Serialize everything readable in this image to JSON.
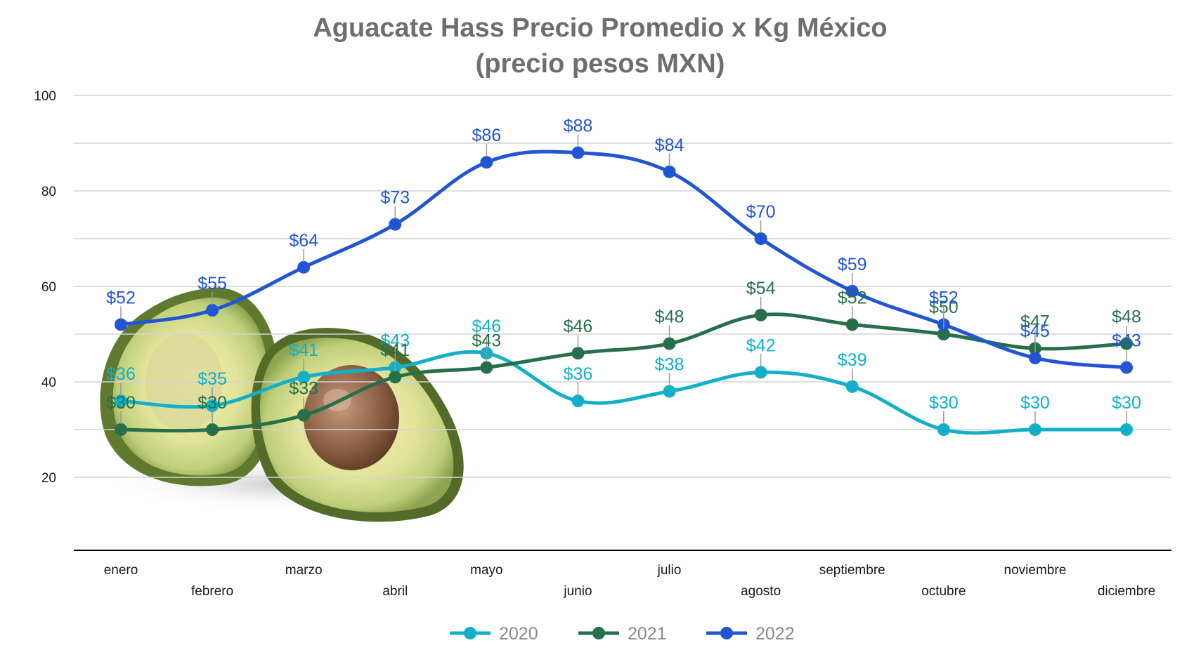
{
  "chart_data": {
    "type": "line",
    "title": "Aguacate Hass Precio Promedio x Kg México",
    "subtitle": "(precio pesos MXN)",
    "categories": [
      "enero",
      "febrero",
      "marzo",
      "abril",
      "mayo",
      "junio",
      "julio",
      "agosto",
      "septiembre",
      "octubre",
      "noviembre",
      "diciembre"
    ],
    "yticks": [
      "100",
      "80",
      "60",
      "40",
      "20"
    ],
    "ylim": [
      10,
      100
    ],
    "grid": true,
    "legend_position": "bottom",
    "series": [
      {
        "name": "2020",
        "color": "#12b0c8",
        "values": [
          36,
          35,
          41,
          43,
          46,
          36,
          38,
          42,
          39,
          30,
          30,
          30
        ],
        "labels": [
          "$36",
          "$35",
          "$41",
          "$43",
          "$46",
          "$36",
          "$38",
          "$42",
          "$39",
          "$30",
          "$30",
          "$30"
        ]
      },
      {
        "name": "2021",
        "color": "#25704a",
        "values": [
          30,
          30,
          33,
          41,
          43,
          46,
          48,
          54,
          52,
          50,
          47,
          48
        ],
        "labels": [
          "$30",
          "$30",
          "$33",
          "$41",
          "$43",
          "$46",
          "$48",
          "$54",
          "$52",
          "$50",
          "$47",
          "$48"
        ]
      },
      {
        "name": "2022",
        "color": "#2255d4",
        "values": [
          52,
          55,
          64,
          73,
          86,
          88,
          84,
          70,
          59,
          52,
          45,
          43
        ],
        "labels": [
          "$52",
          "$55",
          "$64",
          "$73",
          "$86",
          "$88",
          "$84",
          "$70",
          "$59",
          "$52",
          "$45",
          "$43"
        ]
      }
    ]
  }
}
